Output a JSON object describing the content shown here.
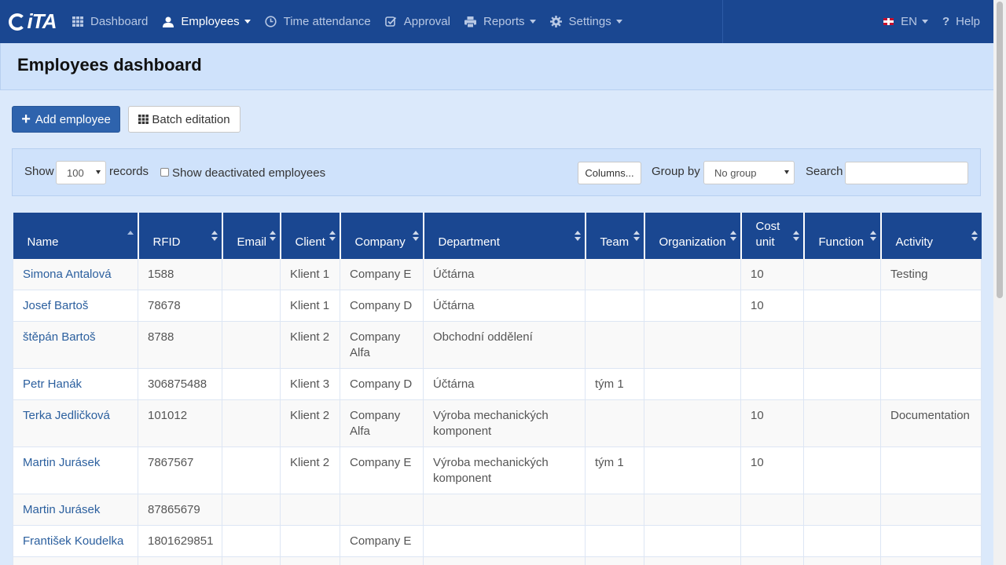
{
  "nav": {
    "logo": "iTA",
    "items": [
      {
        "label": "Dashboard",
        "icon": "grid-icon"
      },
      {
        "label": "Employees",
        "icon": "user-icon",
        "active": true,
        "dropdown": true
      },
      {
        "label": "Time attendance",
        "icon": "clock-icon"
      },
      {
        "label": "Approval",
        "icon": "check-icon"
      },
      {
        "label": "Reports",
        "icon": "print-icon",
        "dropdown": true
      },
      {
        "label": "Settings",
        "icon": "gear-icon",
        "dropdown": true
      }
    ],
    "language": "EN",
    "help": "Help"
  },
  "page": {
    "title": "Employees dashboard",
    "add_button": "Add employee",
    "batch_button": "Batch editation"
  },
  "filters": {
    "show_label": "Show",
    "records_value": "100",
    "records_label": "records",
    "deactivated_label": "Show deactivated employees",
    "columns_button": "Columns...",
    "group_by_label": "Group by",
    "group_by_value": "No group",
    "search_label": "Search",
    "search_value": ""
  },
  "table": {
    "columns": [
      {
        "label": "Name",
        "sort": "asc"
      },
      {
        "label": "RFID",
        "sort": "both"
      },
      {
        "label": "Email",
        "sort": "both"
      },
      {
        "label": "Client",
        "sort": "both"
      },
      {
        "label": "Company",
        "sort": "both"
      },
      {
        "label": "Department",
        "sort": "both"
      },
      {
        "label": "Team",
        "sort": "both"
      },
      {
        "label": "Organization",
        "sort": "both"
      },
      {
        "label": "Cost unit",
        "sort": "both"
      },
      {
        "label": "Function",
        "sort": "both"
      },
      {
        "label": "Activity",
        "sort": "both"
      }
    ],
    "rows": [
      [
        "Simona Antalová",
        "1588",
        "",
        "Klient 1",
        "Company E",
        "Účtárna",
        "",
        "",
        "10",
        "",
        "Testing"
      ],
      [
        "Josef Bartoš",
        "78678",
        "",
        "Klient 1",
        "Company D",
        "Účtárna",
        "",
        "",
        "10",
        "",
        ""
      ],
      [
        "štěpán Bartoš",
        "8788",
        "",
        "Klient 2",
        "Company Alfa",
        "Obchodní oddělení",
        "",
        "",
        "",
        "",
        ""
      ],
      [
        "Petr Hanák",
        "306875488",
        "",
        "Klient 3",
        "Company D",
        "Účtárna",
        "tým 1",
        "",
        "",
        "",
        ""
      ],
      [
        "Terka Jedličková",
        "101012",
        "",
        "Klient 2",
        "Company Alfa",
        "Výroba mechanických komponent",
        "",
        "",
        "10",
        "",
        "Documentation"
      ],
      [
        "Martin Jurásek",
        "7867567",
        "",
        "Klient 2",
        "Company E",
        "Výroba mechanických komponent",
        "tým 1",
        "",
        "10",
        "",
        ""
      ],
      [
        "Martin Jurásek",
        "87865679",
        "",
        "",
        "",
        "",
        "",
        "",
        "",
        "",
        ""
      ],
      [
        "František Koudelka",
        "1801629851",
        "",
        "",
        "Company E",
        "",
        "",
        "",
        "",
        "",
        ""
      ]
    ]
  },
  "colors": {
    "primary": "#1a4791",
    "button": "#2e63ad",
    "link": "#2b5f9e",
    "background": "#dbe9fb"
  }
}
